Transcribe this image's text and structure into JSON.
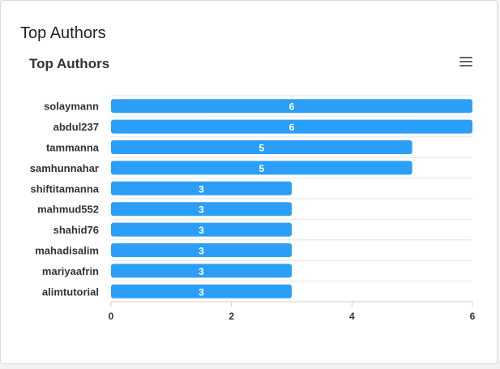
{
  "card": {
    "title": "Top Authors"
  },
  "chart_data": {
    "type": "bar",
    "orientation": "horizontal",
    "title": "Top Authors",
    "categories": [
      "solaymann",
      "abdul237",
      "tammanna",
      "samhunnahar",
      "shiftitamanna",
      "mahmud552",
      "shahid76",
      "mahadisalim",
      "mariyaafrin",
      "alimtutorial"
    ],
    "values": [
      6,
      6,
      5,
      5,
      3,
      3,
      3,
      3,
      3,
      3
    ],
    "xlim": [
      0,
      6
    ],
    "xticks": [
      "0",
      "2",
      "4",
      "6"
    ],
    "data_labels": true,
    "legend": "none",
    "grid": "horizontal category separators",
    "bar_color": "#2b9ff7",
    "label_color": "#ffffff"
  },
  "menu": {
    "icon": "hamburger-menu-icon"
  }
}
